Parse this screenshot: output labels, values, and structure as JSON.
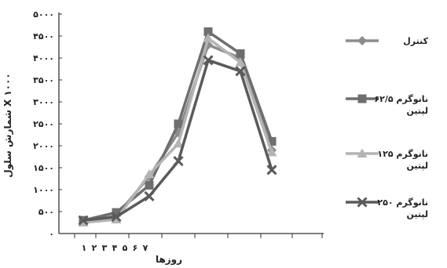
{
  "chart_data": {
    "type": "line",
    "x": [
      1,
      2,
      3,
      4,
      5,
      6,
      7
    ],
    "x_tick_labels": [
      "۱",
      "۲",
      "۳",
      "۴",
      "۵",
      "۶",
      "۷"
    ],
    "xlabel": "روزها",
    "ylabel": "شمارش سلول X ۱۰۰۰",
    "ylim": [
      0,
      5000
    ],
    "y_ticks": [
      0,
      500,
      1000,
      1500,
      2000,
      2500,
      3000,
      3500,
      4000,
      4500,
      5000
    ],
    "y_tick_labels": [
      "۰",
      "۵۰۰",
      "۱۰۰۰",
      "۱۵۰۰",
      "۲۰۰۰",
      "۲۵۰۰",
      "۳۰۰۰",
      "۳۵۰۰",
      "۴۰۰۰",
      "۴۵۰۰",
      "۵۰۰۰"
    ],
    "grid": false,
    "legend_position": "right",
    "series": [
      {
        "name": "کنترل",
        "name_lines": [
          "کنترل"
        ],
        "marker": "diamond",
        "color": "#8c8c8c",
        "values": [
          280,
          400,
          1300,
          2300,
          4300,
          4000,
          1900
        ]
      },
      {
        "name": "۶۲/۵ نانوگرم لپتین",
        "name_lines": [
          "۶۲/۵ نانوگرم",
          "لپتین"
        ],
        "marker": "square",
        "color": "#6e6e6e",
        "values": [
          300,
          480,
          1100,
          2500,
          4600,
          4100,
          2100
        ]
      },
      {
        "name": "۱۲۵ نانوگرم لپتین",
        "name_lines": [
          "۱۲۵ نانوگرم",
          "لپتین"
        ],
        "marker": "triangle",
        "color": "#b4b4b4",
        "values": [
          250,
          320,
          1350,
          2050,
          4450,
          3900,
          1850
        ]
      },
      {
        "name": "۲۵۰ نانوگرم لپتین",
        "name_lines": [
          "۲۵۰ نانوگرم",
          "لپتین"
        ],
        "marker": "x",
        "color": "#5a5a5a",
        "values": [
          300,
          380,
          850,
          1650,
          3950,
          3700,
          1450
        ]
      }
    ]
  }
}
